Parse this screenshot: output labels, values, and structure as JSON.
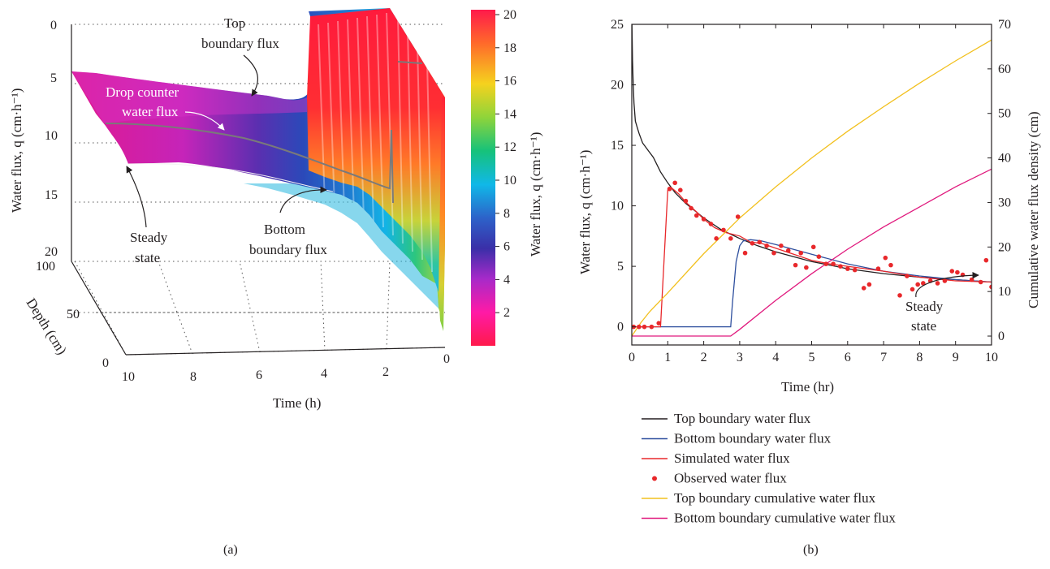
{
  "panel_a": {
    "caption": "(a)",
    "ylabel": "Water flux, q (cm·h⁻¹)",
    "depth_label": "Depth (cm)",
    "xlabel": "Time (h)",
    "colorbar_label": "Water flux, q (cm·h⁻¹)",
    "annotations": {
      "top_line1": "Top",
      "top_line2": "boundary flux",
      "drop_line1": "Drop counter",
      "drop_line2": "water flux",
      "steady_line1": "Steady",
      "steady_line2": "state",
      "bottom_line1": "Bottom",
      "bottom_line2": "boundary flux"
    }
  },
  "panel_b": {
    "caption": "(b)",
    "ylabel": "Water flux, q (cm·h⁻¹)",
    "y2label": "Cumulative water flux density (cm)",
    "xlabel": "Time (hr)",
    "annotations": {
      "steady_line1": "Steady",
      "steady_line2": "state"
    },
    "legend": [
      {
        "label": "Top boundary water flux",
        "color": "#231f20",
        "kind": "line"
      },
      {
        "label": "Bottom boundary water flux",
        "color": "#2e4f9e",
        "kind": "line"
      },
      {
        "label": "Simulated water flux",
        "color": "#e8282b",
        "kind": "line"
      },
      {
        "label": "Observed water flux",
        "color": "#e8282b",
        "kind": "dot"
      },
      {
        "label": "Top boundary cumulative water flux",
        "color": "#f2c01e",
        "kind": "line"
      },
      {
        "label": "Bottom boundary cumulative water flux",
        "color": "#e0197d",
        "kind": "line"
      }
    ]
  },
  "chart_data": [
    {
      "type": "area",
      "subtype": "3d-surface",
      "xlabel": "Time (h)",
      "ylabel": "Water flux, q (cm·h⁻¹)",
      "zlabel": "Depth (cm)",
      "x_ticks": [
        "10",
        "8",
        "6",
        "4",
        "2",
        "0"
      ],
      "y_ticks": [
        "0",
        "5",
        "10",
        "15",
        "20"
      ],
      "depth_ticks": [
        "0",
        "50",
        "100"
      ],
      "xlim": [
        10,
        0
      ],
      "ylim": [
        0,
        20
      ],
      "depth_lim": [
        0,
        100
      ],
      "colorbar": {
        "ticks": [
          "20",
          "18",
          "16",
          "14",
          "12",
          "10",
          "8",
          "6",
          "4",
          "2"
        ],
        "range": [
          0,
          20
        ],
        "stops": [
          "#ff1a4b",
          "#ff6a2a",
          "#f5d21e",
          "#8fd43a",
          "#16c27a",
          "#10b8e8",
          "#2d62c9",
          "#3a2fa8",
          "#a62ac9",
          "#ff1aa6",
          "#ff1a4b"
        ]
      },
      "series": [
        {
          "name": "Top boundary flux",
          "time": [
            0,
            0.5,
            1,
            2,
            3,
            4,
            5,
            6,
            7,
            8,
            9,
            10
          ],
          "values": [
            20,
            20,
            20,
            20,
            9.3,
            7.6,
            6.6,
            5.7,
            5.0,
            4.5,
            4.1,
            3.8
          ]
        },
        {
          "name": "Drop counter water flux",
          "time": [
            0,
            1,
            2,
            3,
            4,
            5,
            6,
            7,
            8,
            9,
            10
          ],
          "values": [
            20,
            16,
            12.5,
            10.8,
            9.2,
            8.2,
            7.3,
            6.4,
            5.8,
            5.2,
            4.7
          ]
        },
        {
          "name": "Bottom boundary flux",
          "time": [
            0,
            1,
            2,
            3,
            4,
            5,
            6,
            7,
            8,
            9,
            10
          ],
          "values": [
            20,
            16,
            12,
            8.5,
            7.2,
            6.3,
            5.6,
            5.0,
            4.5,
            4.1,
            3.8
          ]
        }
      ]
    },
    {
      "type": "line",
      "xlabel": "Time (hr)",
      "ylabel": "Water flux, q (cm·h⁻¹)",
      "y2label": "Cumulative water flux density (cm)",
      "xlim": [
        0,
        10
      ],
      "ylim": [
        -1.5,
        25
      ],
      "y2lim": [
        -2,
        70
      ],
      "x_ticks": [
        0,
        1,
        2,
        3,
        4,
        5,
        6,
        7,
        8,
        9,
        10
      ],
      "y_ticks": [
        0,
        5,
        10,
        15,
        20,
        25
      ],
      "y2_ticks": [
        0,
        10,
        20,
        30,
        40,
        50,
        60,
        70
      ],
      "legend_position": "bottom",
      "series": [
        {
          "name": "Top boundary water flux",
          "axis": "left",
          "color": "#231f20",
          "x": [
            0.005,
            0.02,
            0.04,
            0.06,
            0.1,
            0.15,
            0.2,
            0.3,
            0.45,
            0.6,
            0.8,
            1.0,
            1.2,
            1.5,
            2,
            2.5,
            3,
            3.5,
            4,
            5,
            6,
            7,
            8,
            9,
            10
          ],
          "y": [
            25,
            22,
            20,
            18.5,
            17,
            16.5,
            16,
            15.2,
            14.6,
            14,
            12.8,
            11.9,
            11.1,
            10.2,
            9.0,
            8.0,
            7.3,
            6.7,
            6.2,
            5.4,
            4.8,
            4.4,
            4.1,
            3.9,
            3.7
          ]
        },
        {
          "name": "Bottom boundary water flux",
          "axis": "left",
          "color": "#2e4f9e",
          "x": [
            0,
            2.75,
            2.8,
            2.9,
            3.0,
            3.1,
            3.3,
            3.6,
            4,
            5,
            6,
            7,
            8,
            9,
            10
          ],
          "y": [
            0,
            0,
            2,
            5.4,
            6.7,
            7.1,
            7.2,
            7.1,
            6.8,
            6.0,
            5.2,
            4.6,
            4.2,
            3.9,
            3.7
          ]
        },
        {
          "name": "Simulated water flux",
          "axis": "left",
          "color": "#e8282b",
          "x": [
            0,
            0.8,
            1.0,
            1.1,
            1.3,
            1.5,
            1.8,
            2.0,
            2.3,
            2.6,
            3.0,
            3.3,
            3.6,
            4,
            4.5,
            5,
            5.5,
            6,
            7,
            8,
            9,
            10
          ],
          "y": [
            0,
            0,
            11.3,
            11.5,
            11.0,
            10.3,
            9.5,
            8.9,
            8.2,
            7.8,
            7.5,
            7.0,
            6.9,
            6.5,
            6.0,
            5.5,
            5.2,
            5.0,
            4.6,
            4.1,
            3.8,
            3.7
          ]
        },
        {
          "name": "Top boundary cumulative water flux",
          "axis": "right",
          "color": "#f2c01e",
          "x": [
            0,
            0.25,
            0.5,
            1,
            2,
            3,
            4,
            5,
            6,
            7,
            8,
            9,
            10
          ],
          "y": [
            0,
            3,
            5.5,
            9.7,
            18.5,
            26.5,
            33.5,
            40,
            46,
            51.5,
            56.8,
            61.8,
            66.5
          ]
        },
        {
          "name": "Bottom boundary cumulative water flux",
          "axis": "right",
          "color": "#e0197d",
          "x": [
            0,
            2.75,
            3,
            4,
            5,
            6,
            7,
            8,
            9,
            10
          ],
          "y": [
            0,
            0,
            1.5,
            8,
            14,
            19.5,
            24.5,
            29,
            33.5,
            37.5
          ]
        },
        {
          "name": "Observed water flux",
          "axis": "left",
          "color": "#e8282b",
          "kind": "scatter",
          "x": [
            0.05,
            0.2,
            0.35,
            0.55,
            0.75,
            1.05,
            1.2,
            1.35,
            1.5,
            1.65,
            1.8,
            2.0,
            2.2,
            2.35,
            2.55,
            2.75,
            2.95,
            3.15,
            3.35,
            3.55,
            3.75,
            3.95,
            4.15,
            4.35,
            4.55,
            4.7,
            4.85,
            5.05,
            5.2,
            5.4,
            5.6,
            5.8,
            6.0,
            6.2,
            6.45,
            6.6,
            6.85,
            7.05,
            7.2,
            7.45,
            7.65,
            7.8,
            7.95,
            8.1,
            8.3,
            8.5,
            8.7,
            8.9,
            9.05,
            9.2,
            9.45,
            9.7,
            9.85,
            10.0
          ],
          "y": [
            0,
            0,
            0,
            0,
            0.3,
            11.4,
            11.9,
            11.3,
            10.4,
            9.8,
            9.2,
            8.9,
            8.5,
            7.3,
            8.0,
            7.3,
            9.1,
            6.1,
            6.9,
            7.0,
            6.7,
            6.1,
            6.7,
            6.3,
            5.1,
            6.1,
            4.9,
            6.6,
            5.8,
            5.2,
            5.2,
            5.0,
            4.8,
            4.7,
            3.2,
            3.5,
            4.8,
            5.7,
            5.1,
            2.6,
            4.2,
            3.1,
            3.5,
            3.6,
            3.8,
            3.6,
            3.8,
            4.6,
            4.5,
            4.3,
            3.9,
            3.7,
            5.5,
            3.3
          ]
        }
      ]
    }
  ]
}
